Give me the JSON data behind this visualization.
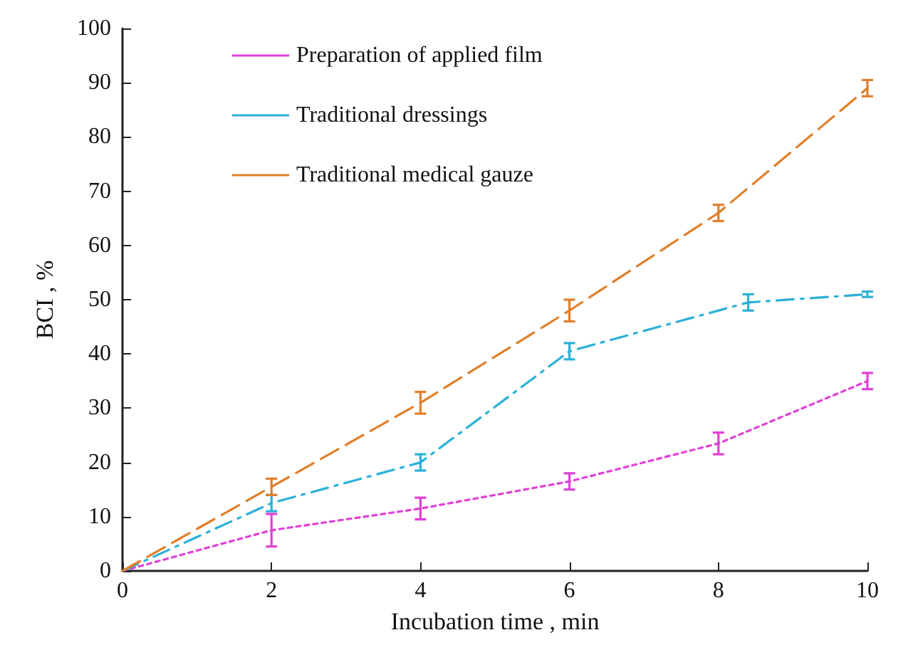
{
  "chart_data": {
    "type": "line",
    "xlabel": "Incubation time , min",
    "ylabel": "BCI , %",
    "xlim": [
      0,
      10
    ],
    "xticks": [
      0,
      2,
      4,
      6,
      8,
      10
    ],
    "ylim": [
      0,
      100
    ],
    "yticks": [
      0,
      10,
      20,
      30,
      40,
      50,
      60,
      70,
      80,
      90,
      100
    ],
    "grid": false,
    "legend": "top left",
    "marker": "none",
    "series": [
      {
        "name": "Preparation of applied film",
        "color": "#e040d8",
        "line_style": "dotted",
        "x": [
          0,
          2,
          4,
          6,
          8,
          10
        ],
        "values": [
          0,
          7.5,
          11.5,
          16.5,
          23.5,
          35
        ],
        "errors": [
          null,
          3,
          2,
          1.5,
          2,
          1.5
        ]
      },
      {
        "name": "Traditional dressings",
        "color": "#2ab0d8",
        "line_style": "dashdot",
        "x": [
          0,
          2,
          4,
          6,
          8.4,
          10
        ],
        "values": [
          0,
          12.5,
          20,
          40.5,
          49.5,
          51
        ],
        "errors": [
          null,
          1.5,
          1.5,
          1.5,
          1.5,
          0.5
        ]
      },
      {
        "name": "Traditional medical gauze",
        "color": "#e07f2a",
        "line_style": "dashed",
        "x": [
          0,
          2,
          4,
          6,
          8,
          10
        ],
        "values": [
          0,
          15.5,
          31,
          48,
          66,
          89
        ],
        "errors": [
          null,
          1.5,
          2,
          2,
          1.5,
          1.5
        ]
      }
    ]
  }
}
